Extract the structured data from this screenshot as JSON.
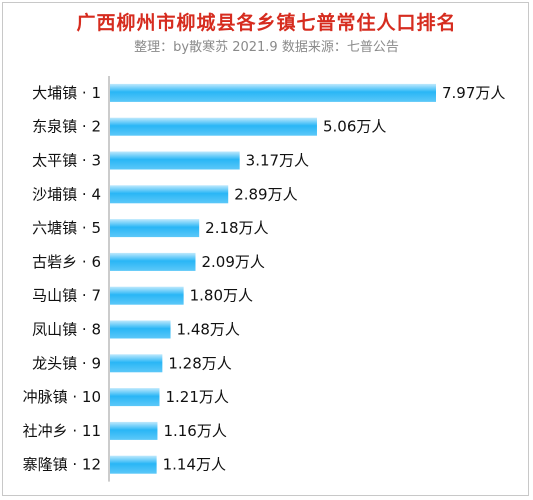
{
  "header": {
    "title": "广西柳州市柳城县各乡镇七普常住人口排名",
    "subtitle": "整理：by散寒苏  2021.9  数据来源：七普公告"
  },
  "chart_data": {
    "type": "bar",
    "orientation": "horizontal",
    "title": "广西柳州市柳城县各乡镇七普常住人口排名",
    "subtitle": "整理：by散寒苏  2021.9  数据来源：七普公告",
    "unit": "万人",
    "categories": [
      "大埔镇 · 1",
      "东泉镇 · 2",
      "太平镇 · 3",
      "沙埔镇 · 4",
      "六塘镇 · 5",
      "古砦乡 · 6",
      "马山镇 · 7",
      "凤山镇 · 8",
      "龙头镇 · 9",
      "冲脉镇 · 10",
      "社冲乡 · 11",
      "寨隆镇 · 12"
    ],
    "values": [
      7.97,
      5.06,
      3.17,
      2.89,
      2.18,
      2.09,
      1.8,
      1.48,
      1.28,
      1.21,
      1.16,
      1.14
    ],
    "value_labels": [
      "7.97万人",
      "5.06万人",
      "3.17万人",
      "2.89万人",
      "2.18万人",
      "2.09万人",
      "1.80万人",
      "1.48万人",
      "1.28万人",
      "1.21万人",
      "1.16万人",
      "1.14万人"
    ],
    "bar_color": "#29b6f6",
    "grid": false,
    "legend": "none"
  }
}
